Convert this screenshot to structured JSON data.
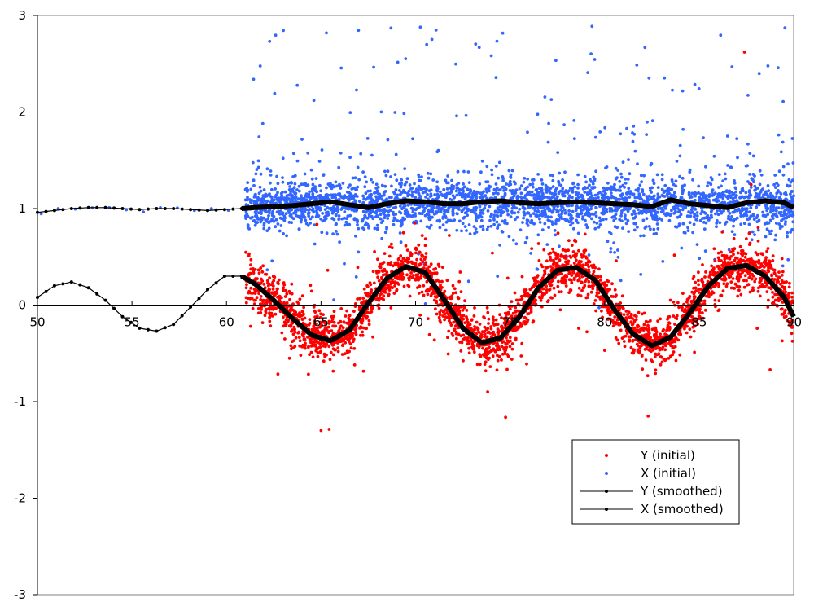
{
  "chart_data": {
    "type": "scatter",
    "title": "",
    "xlabel": "",
    "ylabel": "",
    "xlim": [
      50,
      90
    ],
    "ylim": [
      -3,
      3
    ],
    "x_ticks": [
      "50",
      "55",
      "60",
      "65",
      "70",
      "75",
      "80",
      "85",
      "90"
    ],
    "y_ticks": [
      "3",
      "2",
      "1",
      "0",
      "-1",
      "-2",
      "-3"
    ],
    "grid": false,
    "legend_position": "bottom-right",
    "series": [
      {
        "name": "Y (initial)",
        "kind": "points",
        "color": "#ff0000",
        "x_range": [
          61,
          90
        ],
        "shape": "sine",
        "amplitude": 0.4,
        "period": 8.3,
        "phase_x": 61.5,
        "start_value": 0.3,
        "noise_sd": 0.12,
        "count": 3000
      },
      {
        "name": "X (initial)",
        "kind": "points",
        "color": "#3366ff",
        "x_range": [
          61,
          90
        ],
        "center": 1.05,
        "noise_sd": 0.12,
        "outliers_max": 2.9,
        "count": 3000
      },
      {
        "name": "Y (smoothed)",
        "kind": "line",
        "color": "#000000",
        "x": [
          50,
          50.9,
          51.8,
          52.7,
          53.6,
          54.5,
          55.4,
          56.3,
          57.2,
          58.1,
          59.0,
          59.9,
          60.8,
          61.5,
          62.5,
          63.5,
          64.5,
          65.5,
          66.5,
          67.5,
          68.5,
          69.5,
          70.5,
          71.5,
          72.5,
          73.5,
          74.5,
          75.5,
          76.5,
          77.5,
          78.5,
          79.5,
          80.5,
          81.5,
          82.5,
          83.5,
          84.5,
          85.5,
          86.5,
          87.5,
          88.5,
          89.5,
          90
        ],
        "y": [
          0.08,
          0.2,
          0.24,
          0.18,
          0.05,
          -0.12,
          -0.24,
          -0.27,
          -0.2,
          -0.02,
          0.16,
          0.3,
          0.3,
          0.22,
          0.05,
          -0.14,
          -0.31,
          -0.37,
          -0.26,
          0.02,
          0.28,
          0.4,
          0.34,
          0.06,
          -0.24,
          -0.39,
          -0.34,
          -0.12,
          0.18,
          0.36,
          0.39,
          0.26,
          -0.04,
          -0.3,
          -0.42,
          -0.33,
          -0.08,
          0.2,
          0.38,
          0.41,
          0.3,
          0.08,
          -0.12
        ]
      },
      {
        "name": "X (smoothed)",
        "kind": "line",
        "color": "#000000",
        "x": [
          50,
          50.9,
          51.8,
          52.7,
          53.6,
          54.5,
          55.4,
          56.3,
          57.2,
          58.1,
          59.0,
          59.9,
          60.8,
          61.5,
          62.5,
          63.5,
          64.5,
          65.5,
          66.5,
          67.5,
          68.5,
          69.5,
          70.5,
          71.5,
          72.5,
          73.5,
          74.5,
          75.5,
          76.5,
          77.5,
          78.5,
          79.5,
          80.5,
          81.5,
          82.5,
          83.5,
          84.5,
          85.5,
          86.5,
          87.5,
          88.5,
          89.5,
          90
        ],
        "y": [
          0.96,
          0.98,
          1.0,
          1.01,
          1.01,
          1.0,
          0.99,
          1.0,
          1.0,
          0.99,
          0.98,
          0.99,
          1.0,
          1.01,
          1.02,
          1.03,
          1.05,
          1.07,
          1.04,
          1.01,
          1.05,
          1.08,
          1.07,
          1.05,
          1.05,
          1.07,
          1.08,
          1.06,
          1.05,
          1.06,
          1.07,
          1.06,
          1.05,
          1.04,
          1.02,
          1.09,
          1.05,
          1.03,
          1.01,
          1.06,
          1.08,
          1.06,
          1.01
        ]
      }
    ]
  }
}
